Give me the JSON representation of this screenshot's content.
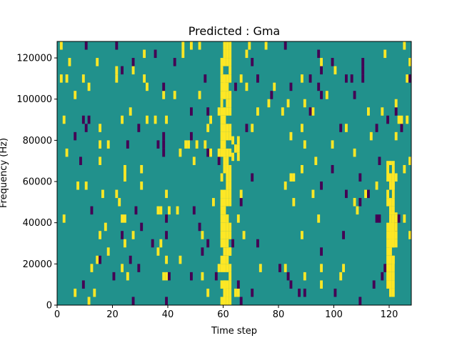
{
  "chart_data": {
    "type": "heatmap",
    "title": "Predicted : Gma",
    "xlabel": "Time step",
    "ylabel": "Frequency (Hz)",
    "xlim": [
      0,
      128
    ],
    "ylim": [
      0,
      128000
    ],
    "x_ticks": [
      {
        "value": 0,
        "label": "0"
      },
      {
        "value": 20,
        "label": "20"
      },
      {
        "value": 40,
        "label": "40"
      },
      {
        "value": 60,
        "label": "60"
      },
      {
        "value": 80,
        "label": "80"
      },
      {
        "value": 100,
        "label": "100"
      },
      {
        "value": 120,
        "label": "120"
      }
    ],
    "y_ticks": [
      {
        "value": 0,
        "label": "0"
      },
      {
        "value": 20000,
        "label": "20000"
      },
      {
        "value": 40000,
        "label": "40000"
      },
      {
        "value": 60000,
        "label": "60000"
      },
      {
        "value": 80000,
        "label": "80000"
      },
      {
        "value": 100000,
        "label": "100000"
      },
      {
        "value": 120000,
        "label": "120000"
      }
    ],
    "colors": {
      "background": "#21918c",
      "low": "#440154",
      "high": "#fde725"
    },
    "grid": false,
    "legend": "none",
    "columns": 128,
    "rows": 128,
    "high_regions": [
      {
        "x": [
          59,
          63
        ],
        "y": [
          0,
          128000
        ]
      },
      {
        "x": [
          63,
          66
        ],
        "y": [
          70000,
          82000
        ]
      },
      {
        "x": [
          119,
          122
        ],
        "y": [
          4000,
          70000
        ]
      },
      {
        "x": [
          120,
          123
        ],
        "y": [
          28000,
          45000
        ]
      }
    ]
  }
}
